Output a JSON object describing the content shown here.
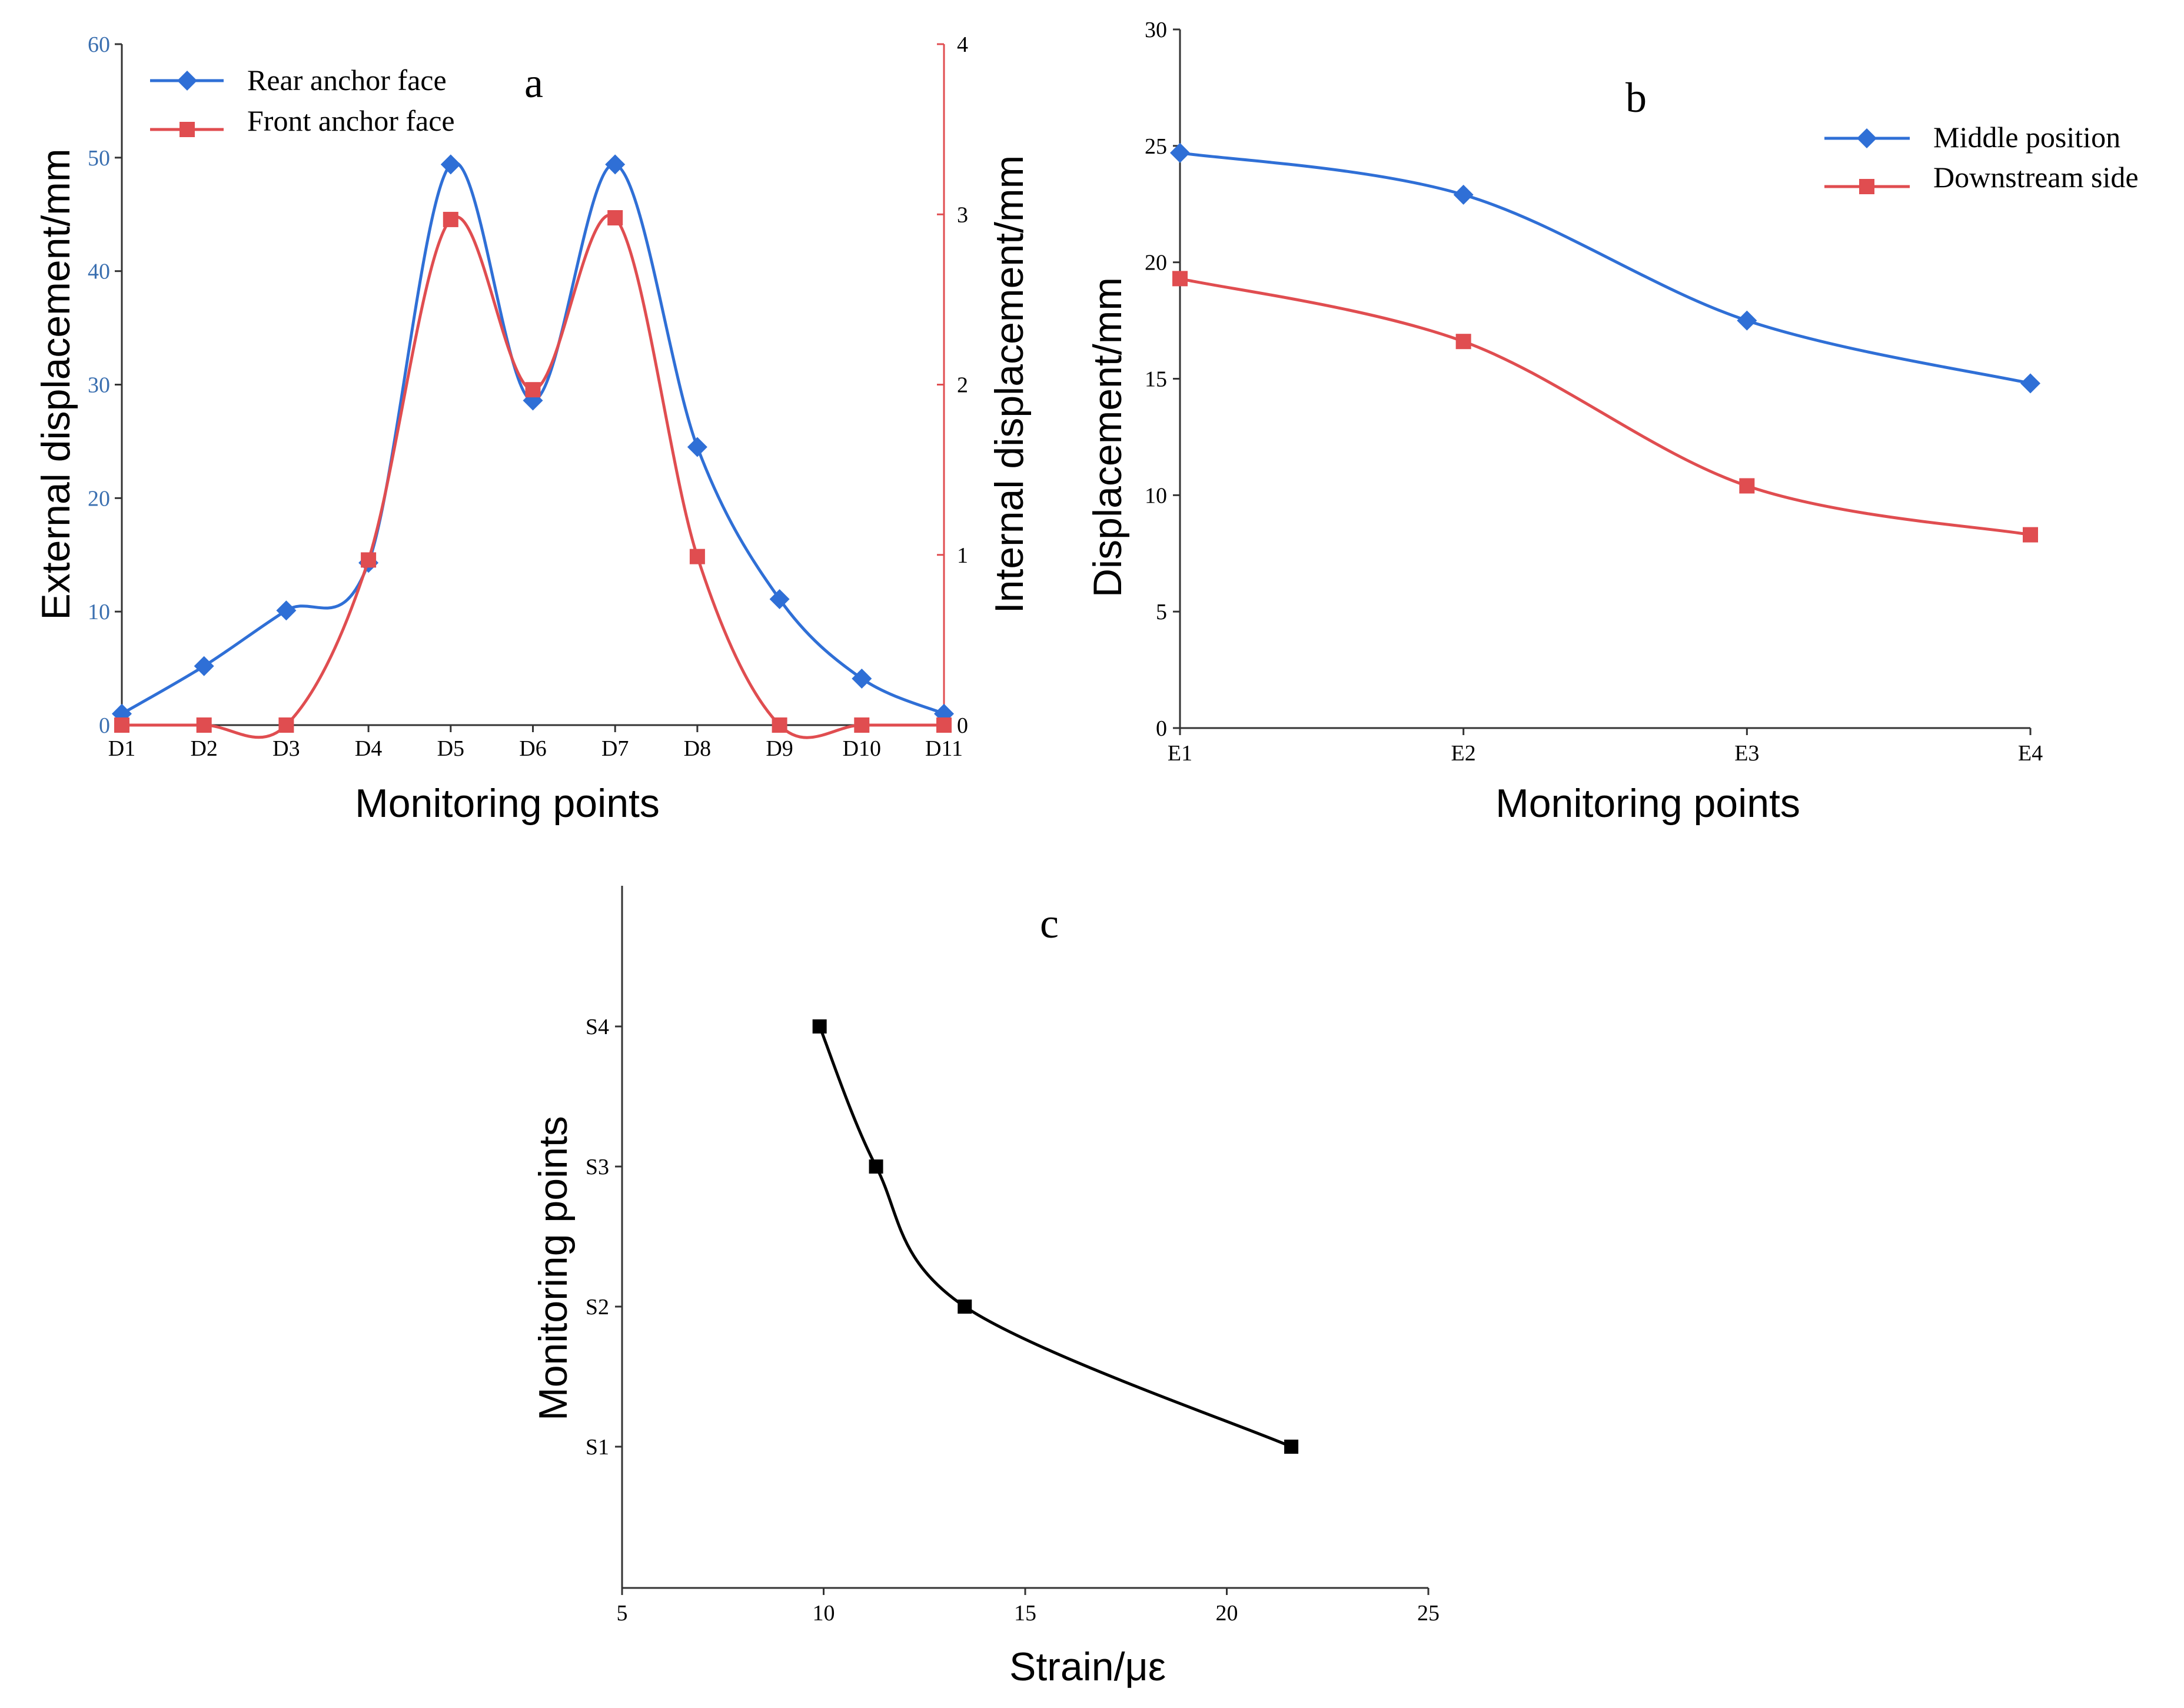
{
  "chart_data": [
    {
      "id": "a",
      "type": "line",
      "panel_label": "a",
      "xlabel": "Monitoring points",
      "ylabel": "External displacement/mm",
      "y2label": "Internal displacement/mm",
      "categories": [
        "D1",
        "D2",
        "D3",
        "D4",
        "D5",
        "D6",
        "D7",
        "D8",
        "D9",
        "D10",
        "D11"
      ],
      "ylim": [
        0,
        60
      ],
      "yticks": [
        "0",
        "10",
        "20",
        "30",
        "40",
        "50",
        "60"
      ],
      "y2lim": [
        0,
        4
      ],
      "y2ticks": [
        "0",
        "1",
        "2",
        "3",
        "4"
      ],
      "legend_position": "top-left",
      "series": [
        {
          "name": "Rear anchor face",
          "axis": "left",
          "color": "#2f6fd6",
          "marker": "diamond",
          "values": [
            1,
            5.2,
            10.1,
            14.3,
            49.4,
            28.6,
            49.4,
            24.5,
            11.1,
            4.1,
            1
          ]
        },
        {
          "name": "Front anchor face",
          "axis": "right",
          "color": "#e04d50",
          "marker": "square",
          "values": [
            0,
            0,
            0,
            0.97,
            2.97,
            1.97,
            2.98,
            0.99,
            0,
            0,
            0
          ]
        }
      ]
    },
    {
      "id": "b",
      "type": "line",
      "panel_label": "b",
      "xlabel": "Monitoring points",
      "ylabel": "Displacement/mm",
      "categories": [
        "E1",
        "E2",
        "E3",
        "E4"
      ],
      "ylim": [
        0,
        30
      ],
      "yticks": [
        "0",
        "5",
        "10",
        "15",
        "20",
        "25",
        "30"
      ],
      "legend_position": "top-right",
      "series": [
        {
          "name": "Middle position",
          "color": "#2f6fd6",
          "marker": "diamond",
          "values": [
            24.7,
            22.9,
            17.5,
            14.8
          ]
        },
        {
          "name": "Downstream side",
          "color": "#e04d50",
          "marker": "square",
          "values": [
            19.3,
            16.6,
            10.4,
            8.3
          ]
        }
      ]
    },
    {
      "id": "c",
      "type": "line",
      "panel_label": "c",
      "xlabel": "Strain/με",
      "ylabel": "Monitoring points",
      "xlim": [
        5,
        25
      ],
      "xticks": [
        "5",
        "10",
        "15",
        "20",
        "25"
      ],
      "yticks": [
        "S1",
        "S2",
        "S3",
        "S4"
      ],
      "series": [
        {
          "name": "Strain",
          "color": "#000000",
          "marker": "square",
          "x": [
            21.6,
            13.5,
            11.3,
            9.9
          ],
          "y": [
            "S1",
            "S2",
            "S3",
            "S4"
          ]
        }
      ]
    }
  ]
}
